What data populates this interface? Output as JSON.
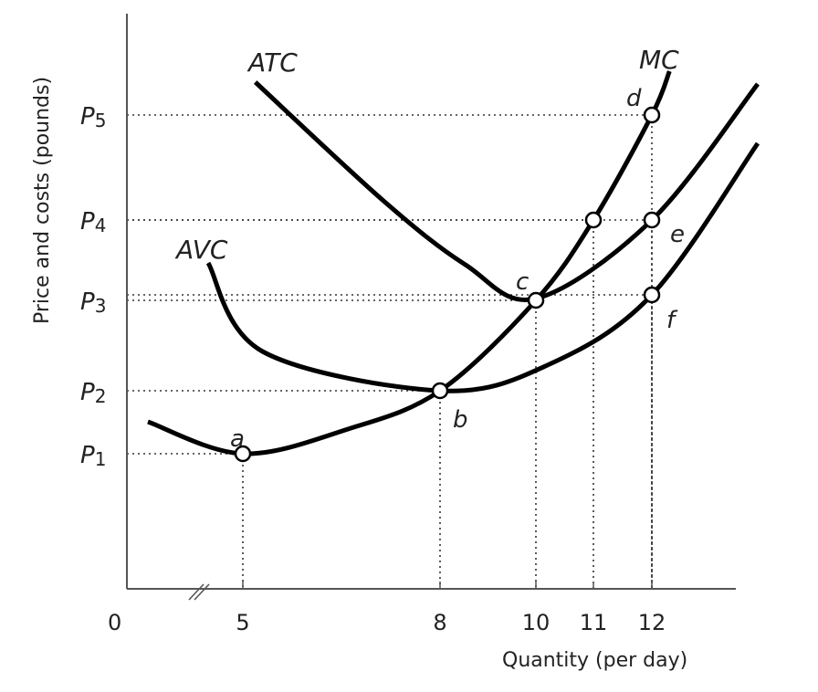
{
  "chart_data": {
    "type": "line",
    "title": "",
    "xlabel": "Quantity (per day)",
    "ylabel": "Price and costs (pounds)",
    "origin_label": "0",
    "x_ticks": [
      5,
      8,
      10,
      11,
      12
    ],
    "x_tick_labels": [
      "5",
      "8",
      "10",
      "11",
      "12"
    ],
    "axis_break": true,
    "y_levels": [
      {
        "label": "P1",
        "value": 1.48
      },
      {
        "label": "P2",
        "value": 2.17
      },
      {
        "label": "P3",
        "value": 3.16
      },
      {
        "label": "P4",
        "value": 4.04
      },
      {
        "label": "P5",
        "value": 5.19
      }
    ],
    "series": [
      {
        "name": "MC",
        "points": [
          [
            3.0,
            1.83
          ],
          [
            5,
            1.48
          ],
          [
            6.6,
            1.75
          ],
          [
            8,
            2.17
          ],
          [
            10,
            3.16
          ],
          [
            11,
            4.04
          ],
          [
            12,
            5.19
          ],
          [
            12.3,
            5.67
          ]
        ]
      },
      {
        "name": "ATC",
        "points": [
          [
            5.19,
            5.55
          ],
          [
            7.14,
            4.25
          ],
          [
            8.53,
            3.55
          ],
          [
            10,
            3.18
          ],
          [
            12,
            4.04
          ],
          [
            13.8,
            5.53
          ]
        ]
      },
      {
        "name": "AVC",
        "points": [
          [
            4.27,
            3.57
          ],
          [
            5.3,
            2.6
          ],
          [
            8,
            2.17
          ],
          [
            10.2,
            2.45
          ],
          [
            12,
            3.22
          ],
          [
            13.8,
            4.88
          ]
        ]
      }
    ],
    "marked_points": [
      {
        "label": "a",
        "x": 5,
        "y": 1.48
      },
      {
        "label": "b",
        "x": 8,
        "y": 2.17
      },
      {
        "label": "c",
        "x": 10,
        "y": 3.16
      },
      {
        "label": "",
        "x": 11,
        "y": 4.04
      },
      {
        "label": "d",
        "x": 12,
        "y": 5.19
      },
      {
        "label": "e",
        "x": 12,
        "y": 4.04
      },
      {
        "label": "f",
        "x": 12,
        "y": 3.22
      }
    ],
    "grid": false
  }
}
